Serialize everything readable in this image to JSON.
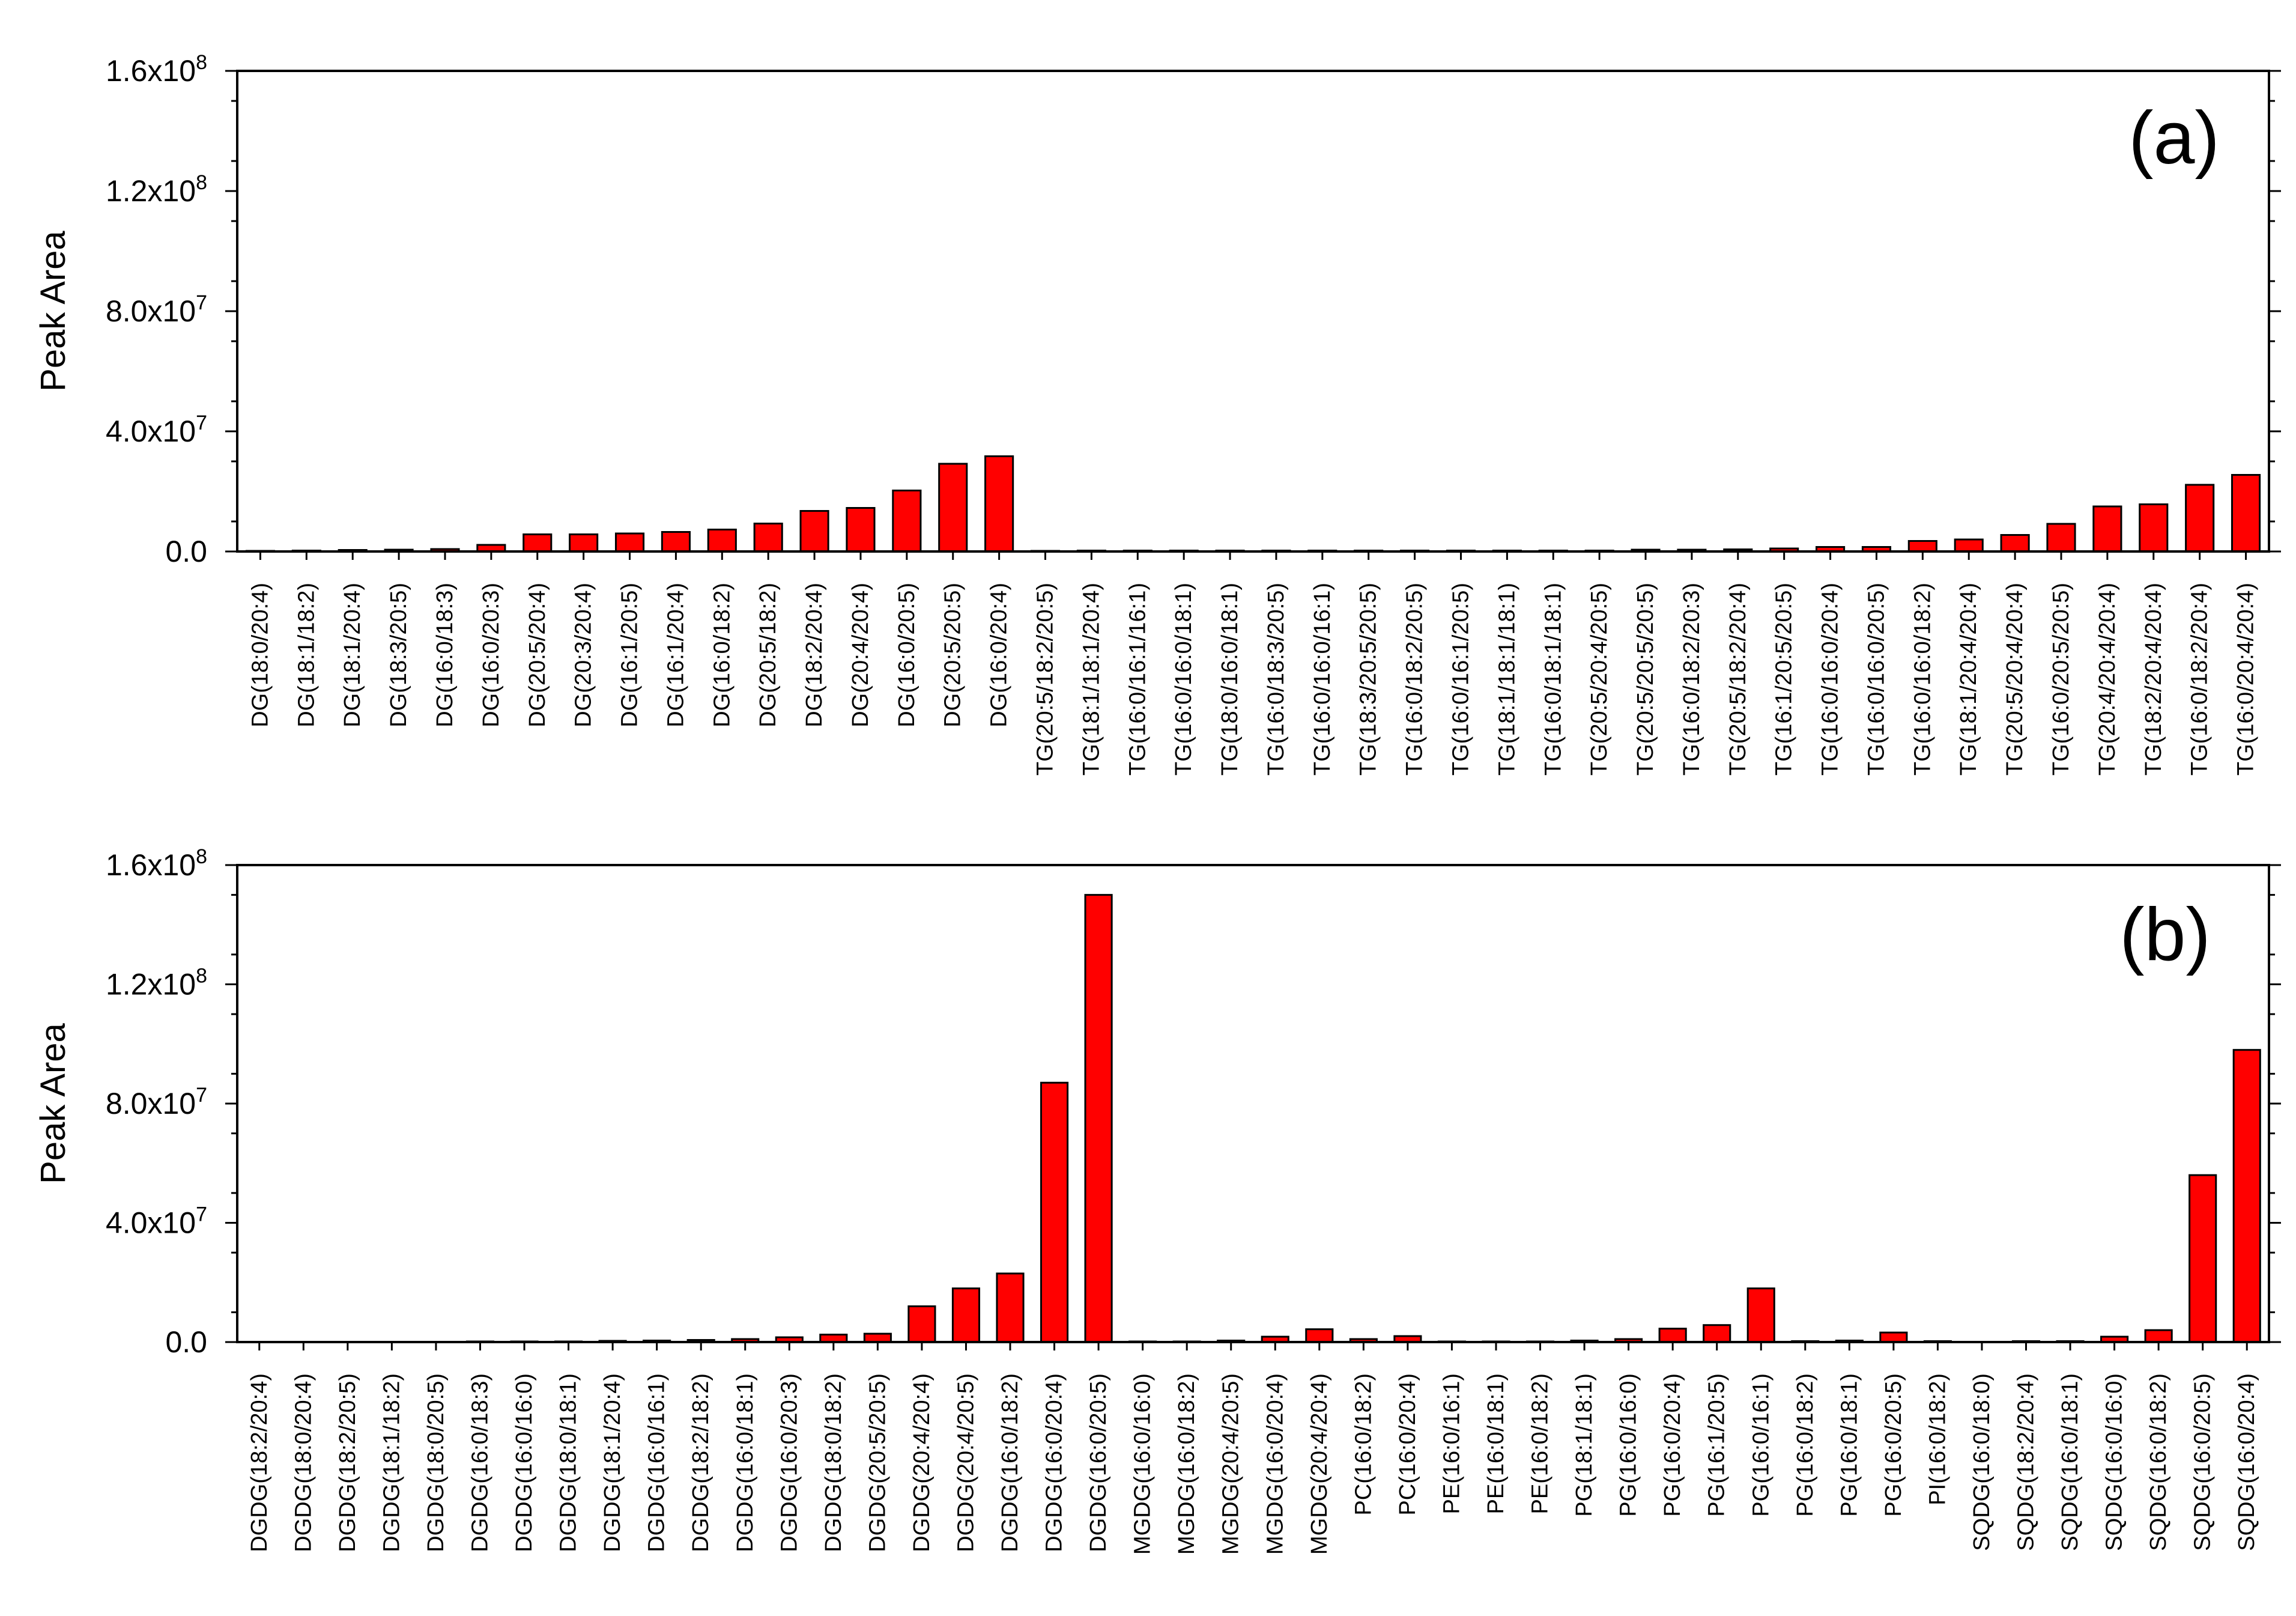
{
  "chart_data": [
    {
      "type": "bar",
      "panel_label": "(a)",
      "ylabel": "Peak Area",
      "ylim": [
        0,
        160000000
      ],
      "yticks": [
        {
          "value": 0,
          "label": "0.0"
        },
        {
          "value": 40000000,
          "mant": "4.0x10",
          "exp": "7"
        },
        {
          "value": 80000000,
          "mant": "8.0x10",
          "exp": "7"
        },
        {
          "value": 120000000,
          "mant": "1.2x10",
          "exp": "8"
        },
        {
          "value": 160000000,
          "mant": "1.6x10",
          "exp": "8"
        }
      ],
      "bar_color": "#ff0000",
      "categories": [
        "DG(18:0/20:4)",
        "DG(18:1/18:2)",
        "DG(18:1/20:4)",
        "DG(18:3/20:5)",
        "DG(16:0/18:3)",
        "DG(16:0/20:3)",
        "DG(20:5/20:4)",
        "DG(20:3/20:4)",
        "DG(16:1/20:5)",
        "DG(16:1/20:4)",
        "DG(16:0/18:2)",
        "DG(20:5/18:2)",
        "DG(18:2/20:4)",
        "DG(20:4/20:4)",
        "DG(16:0/20:5)",
        "DG(20:5/20:5)",
        "DG(16:0/20:4)",
        "TG(20:5/18:2/20:5)",
        "TG(18:1/18:1/20:4)",
        "TG(16:0/16:1/16:1)",
        "TG(16:0/16:0/18:1)",
        "TG(18:0/16:0/18:1)",
        "TG(16:0/18:3/20:5)",
        "TG(16:0/16:0/16:1)",
        "TG(18:3/20:5/20:5)",
        "TG(16:0/18:2/20:5)",
        "TG(16:0/16:1/20:5)",
        "TG(18:1/18:1/18:1)",
        "TG(16:0/18:1/18:1)",
        "TG(20:5/20:4/20:5)",
        "TG(20:5/20:5/20:5)",
        "TG(16:0/18:2/20:3)",
        "TG(20:5/18:2/20:4)",
        "TG(16:1/20:5/20:5)",
        "TG(16:0/16:0/20:4)",
        "TG(16:0/16:0/20:5)",
        "TG(16:0/16:0/18:2)",
        "TG(18:1/20:4/20:4)",
        "TG(20:5/20:4/20:4)",
        "TG(16:0/20:5/20:5)",
        "TG(20:4/20:4/20:4)",
        "TG(18:2/20:4/20:4)",
        "TG(16:0/18:2/20:4)",
        "TG(16:0/20:4/20:4)"
      ],
      "values": [
        200000,
        300000,
        500000,
        600000,
        800000,
        2200000,
        5700000,
        5700000,
        6000000,
        6500000,
        7300000,
        9300000,
        13500000,
        14500000,
        20300000,
        29200000,
        31700000,
        200000,
        300000,
        300000,
        300000,
        300000,
        300000,
        300000,
        300000,
        300000,
        300000,
        300000,
        300000,
        300000,
        600000,
        600000,
        700000,
        1000000,
        1500000,
        1500000,
        3500000,
        4000000,
        5500000,
        9200000,
        15000000,
        15700000,
        22200000,
        25500000
      ]
    },
    {
      "type": "bar",
      "panel_label": "(b)",
      "ylabel": "Peak Area",
      "ylim": [
        0,
        160000000
      ],
      "yticks": [
        {
          "value": 0,
          "label": "0.0"
        },
        {
          "value": 40000000,
          "mant": "4.0x10",
          "exp": "7"
        },
        {
          "value": 80000000,
          "mant": "8.0x10",
          "exp": "7"
        },
        {
          "value": 120000000,
          "mant": "1.2x10",
          "exp": "8"
        },
        {
          "value": 160000000,
          "mant": "1.6x10",
          "exp": "8"
        }
      ],
      "bar_color": "#ff0000",
      "categories": [
        "DGDG(18:2/20:4)",
        "DGDG(18:0/20:4)",
        "DGDG(18:2/20:5)",
        "DGDG(18:1/18:2)",
        "DGDG(18:0/20:5)",
        "DGDG(16:0/18:3)",
        "DGDG(16:0/16:0)",
        "DGDG(18:0/18:1)",
        "DGDG(18:1/20:4)",
        "DGDG(16:0/16:1)",
        "DGDG(18:2/18:2)",
        "DGDG(16:0/18:1)",
        "DGDG(16:0/20:3)",
        "DGDG(18:0/18:2)",
        "DGDG(20:5/20:5)",
        "DGDG(20:4/20:4)",
        "DGDG(20:4/20:5)",
        "DGDG(16:0/18:2)",
        "DGDG(16:0/20:4)",
        "DGDG(16:0/20:5)",
        "MGDG(16:0/16:0)",
        "MGDG(16:0/18:2)",
        "MGDG(20:4/20:5)",
        "MGDG(16:0/20:4)",
        "MGDG(20:4/20:4)",
        "PC(16:0/18:2)",
        "PC(16:0/20:4)",
        "PE(16:0/16:1)",
        "PE(16:0/18:1)",
        "PE(16:0/18:2)",
        "PG(18:1/18:1)",
        "PG(16:0/16:0)",
        "PG(16:0/20:4)",
        "PG(16:1/20:5)",
        "PG(16:0/16:1)",
        "PG(16:0/18:2)",
        "PG(16:0/18:1)",
        "PG(16:0/20:5)",
        "PI(16:0/18:2)",
        "SQDG(16:0/18:0)",
        "SQDG(18:2/20:4)",
        "SQDG(16:0/18:1)",
        "SQDG(16:0/16:0)",
        "SQDG(16:0/18:2)",
        "SQDG(16:0/20:5)",
        "SQDG(16:0/20:4)"
      ],
      "values": [
        100000,
        100000,
        100000,
        100000,
        100000,
        200000,
        200000,
        200000,
        400000,
        500000,
        700000,
        1000000,
        1600000,
        2500000,
        2800000,
        12000000,
        18000000,
        23000000,
        87000000,
        150000000,
        200000,
        200000,
        500000,
        1800000,
        4300000,
        1000000,
        2000000,
        200000,
        200000,
        200000,
        500000,
        1000000,
        4500000,
        5700000,
        18000000,
        300000,
        500000,
        3200000,
        300000,
        100000,
        300000,
        300000,
        1800000,
        4000000,
        56000000,
        98000000
      ]
    }
  ]
}
